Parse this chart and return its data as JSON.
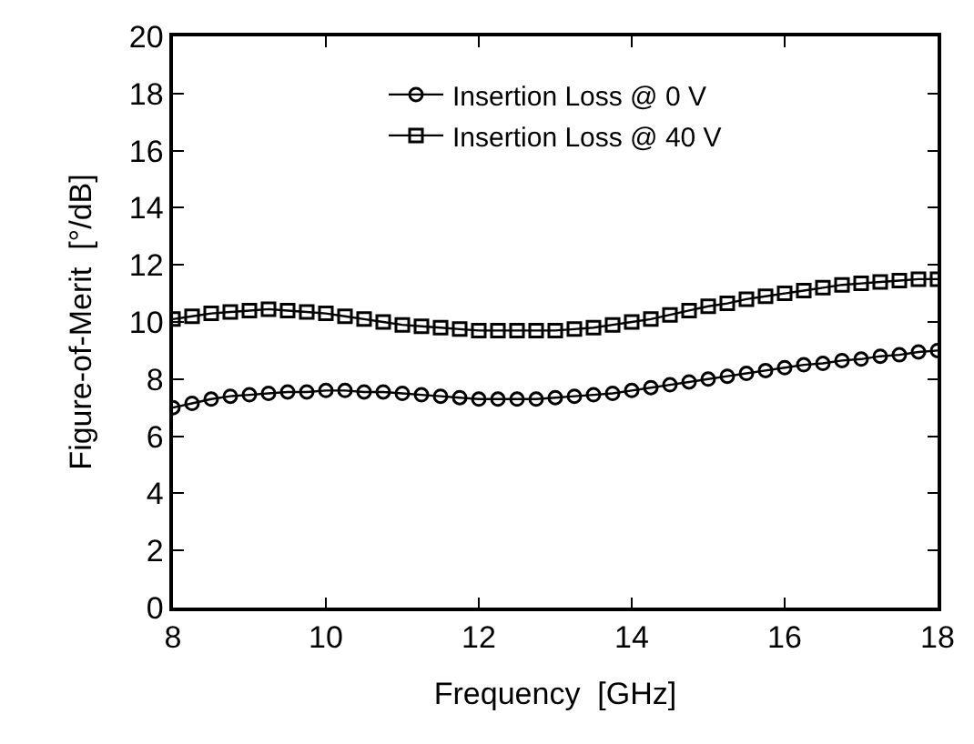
{
  "chart_data": {
    "type": "line",
    "xlabel": "Frequency  [GHz]",
    "ylabel": "Figure-of-Merit  [°/dB]",
    "x": [
      8,
      8.25,
      8.5,
      8.75,
      9,
      9.25,
      9.5,
      9.75,
      10,
      10.25,
      10.5,
      10.75,
      11,
      11.25,
      11.5,
      11.75,
      12,
      12.25,
      12.5,
      12.75,
      13,
      13.25,
      13.5,
      13.75,
      14,
      14.25,
      14.5,
      14.75,
      15,
      15.25,
      15.5,
      15.75,
      16,
      16.25,
      16.5,
      16.75,
      17,
      17.25,
      17.5,
      17.75,
      18
    ],
    "series": [
      {
        "name": "Insertion Loss @ 0 V",
        "color": "#000000",
        "marker": "circle",
        "values": [
          7.0,
          7.15,
          7.3,
          7.4,
          7.45,
          7.5,
          7.55,
          7.55,
          7.6,
          7.6,
          7.55,
          7.55,
          7.5,
          7.45,
          7.4,
          7.35,
          7.3,
          7.3,
          7.3,
          7.3,
          7.35,
          7.4,
          7.45,
          7.5,
          7.6,
          7.7,
          7.8,
          7.9,
          8.0,
          8.1,
          8.2,
          8.3,
          8.4,
          8.5,
          8.55,
          8.65,
          8.7,
          8.8,
          8.85,
          8.95,
          9.0
        ]
      },
      {
        "name": "Insertion Loss @ 40 V",
        "color": "#000000",
        "marker": "square",
        "values": [
          10.1,
          10.2,
          10.3,
          10.35,
          10.4,
          10.45,
          10.4,
          10.35,
          10.3,
          10.2,
          10.1,
          10.0,
          9.9,
          9.85,
          9.8,
          9.75,
          9.7,
          9.7,
          9.7,
          9.7,
          9.7,
          9.75,
          9.8,
          9.9,
          10.0,
          10.1,
          10.25,
          10.4,
          10.55,
          10.65,
          10.8,
          10.9,
          11.0,
          11.1,
          11.2,
          11.3,
          11.35,
          11.4,
          11.45,
          11.5,
          11.5
        ]
      }
    ],
    "xlim": [
      8,
      18
    ],
    "xticks": [
      8,
      10,
      12,
      14,
      16,
      18
    ],
    "ylim": [
      0,
      20
    ],
    "yticks": [
      0,
      2,
      4,
      6,
      8,
      10,
      12,
      14,
      16,
      18,
      20
    ],
    "grid": false,
    "legend": "top",
    "line_style": "solid"
  }
}
